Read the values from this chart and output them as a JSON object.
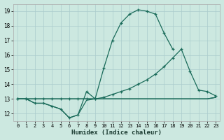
{
  "xlabel": "Humidex (Indice chaleur)",
  "bg_color": "#cce8e0",
  "line_color": "#1a6b5a",
  "grid_color": "#aacccc",
  "xlim": [
    -0.5,
    23.5
  ],
  "ylim": [
    11.5,
    19.5
  ],
  "xticks": [
    0,
    1,
    2,
    3,
    4,
    5,
    6,
    7,
    8,
    9,
    10,
    11,
    12,
    13,
    14,
    15,
    16,
    17,
    18,
    19,
    20,
    21,
    22,
    23
  ],
  "yticks": [
    12,
    13,
    14,
    15,
    16,
    17,
    18,
    19
  ],
  "series1_x": [
    0,
    1,
    2,
    3,
    4,
    5,
    6,
    7,
    8,
    9,
    10,
    11,
    12,
    13,
    14,
    15,
    16,
    17,
    18
  ],
  "series1_y": [
    13,
    13,
    12.7,
    12.7,
    12.5,
    12.3,
    11.7,
    11.9,
    13.5,
    13.0,
    15.1,
    17.0,
    18.2,
    18.8,
    19.1,
    19.0,
    18.8,
    17.5,
    16.4
  ],
  "series2_x": [
    0,
    1,
    2,
    3,
    4,
    5,
    6,
    7,
    8,
    9,
    10,
    11,
    12,
    13,
    14,
    15,
    16,
    17,
    18,
    19,
    20,
    21,
    22,
    23
  ],
  "series2_y": [
    13,
    13,
    13,
    13,
    13,
    13,
    13,
    13,
    13,
    13,
    13.1,
    13.3,
    13.5,
    13.7,
    14.0,
    14.3,
    14.7,
    15.2,
    15.8,
    16.4,
    14.9,
    13.6,
    13.5,
    13.2
  ],
  "series3_x": [
    0,
    1,
    2,
    3,
    4,
    5,
    6,
    7,
    8,
    9,
    10,
    11,
    12,
    13,
    14,
    15,
    16,
    17,
    18,
    19,
    20,
    21,
    22,
    23
  ],
  "series3_y": [
    13,
    13,
    12.7,
    12.7,
    12.5,
    12.3,
    11.7,
    11.9,
    12.9,
    13.0,
    13.0,
    13.0,
    13.0,
    13.0,
    13.0,
    13.0,
    13.0,
    13.0,
    13.0,
    13.0,
    13.0,
    13.0,
    13.0,
    13.1
  ],
  "series4_x": [
    0,
    1,
    2,
    3,
    4,
    5,
    6,
    7,
    8,
    9,
    10,
    11,
    12,
    13,
    14,
    15,
    16,
    17,
    18,
    19,
    20,
    21,
    22,
    23
  ],
  "series4_y": [
    13,
    13,
    13,
    13,
    13,
    13,
    13,
    13,
    13,
    13,
    13,
    13,
    13,
    13,
    13,
    13,
    13,
    13,
    13,
    13,
    13,
    13,
    13,
    13.1
  ]
}
